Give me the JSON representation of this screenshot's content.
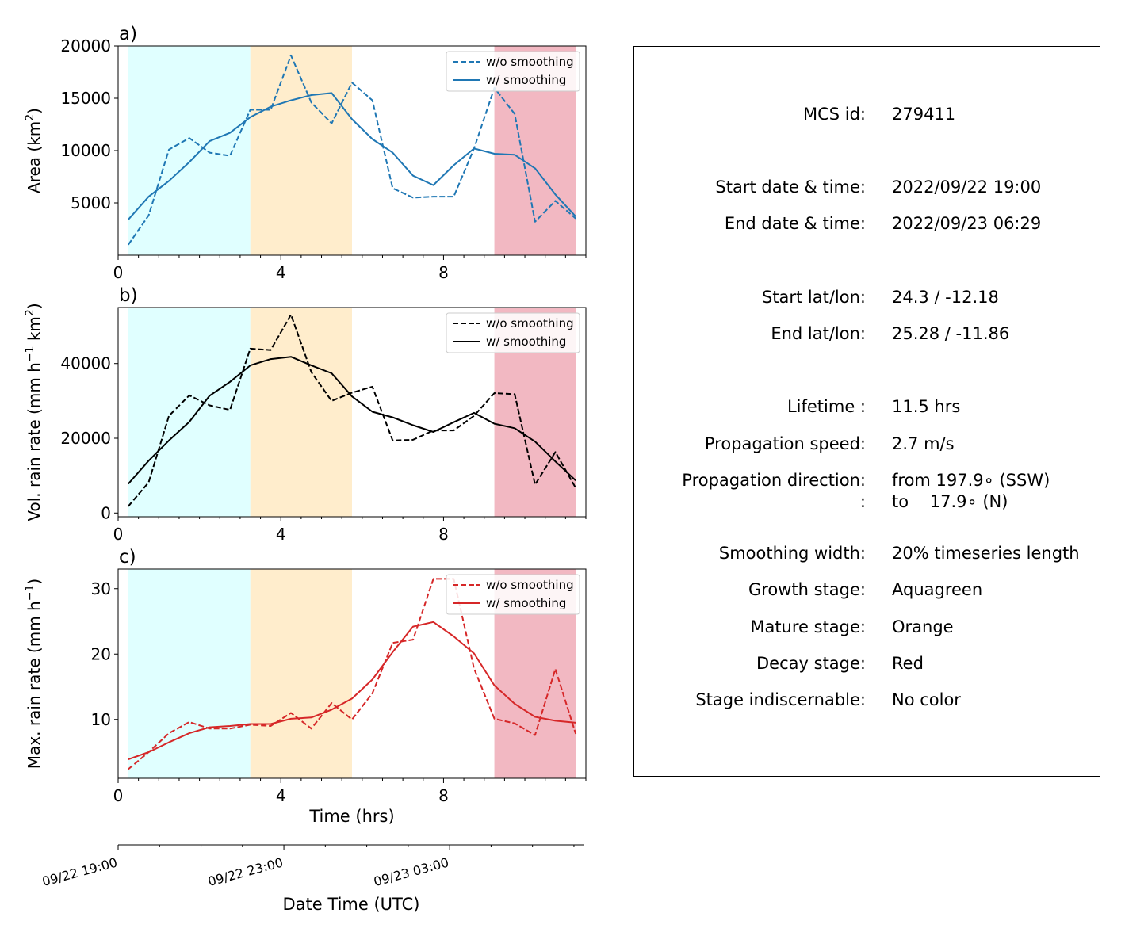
{
  "chart_data": [
    {
      "type": "line",
      "panel_label": "a)",
      "ylabel": "Area  (km",
      "ylabel_sup": "2",
      "ylabel_tail": ")",
      "ylim": [
        0,
        20000
      ],
      "yticks": [
        5000,
        10000,
        15000,
        20000
      ],
      "ytick_labels": [
        "5000",
        "10000",
        "15000",
        "20000"
      ],
      "xlim": [
        0,
        11.5
      ],
      "xticks": [
        0,
        4,
        8
      ],
      "xtick_labels": [
        "0",
        "4",
        "8"
      ],
      "series": [
        {
          "name": "w/o smoothing",
          "style": "dashed",
          "color": "#1f77b4",
          "x": [
            0.25,
            0.75,
            1.25,
            1.75,
            2.25,
            2.75,
            3.25,
            3.75,
            4.25,
            4.75,
            5.25,
            5.75,
            6.25,
            6.75,
            7.25,
            7.75,
            8.25,
            8.75,
            9.25,
            9.75,
            10.25,
            10.75,
            11.25
          ],
          "values": [
            1000,
            3800,
            10100,
            11200,
            9800,
            9500,
            13900,
            13900,
            19100,
            14600,
            12600,
            16500,
            14800,
            6400,
            5500,
            5600,
            5600,
            10200,
            16000,
            13500,
            3200,
            5200,
            3500
          ]
        },
        {
          "name": "w/ smoothing",
          "style": "solid",
          "color": "#1f77b4",
          "x": [
            0.25,
            0.75,
            1.25,
            1.75,
            2.25,
            2.75,
            3.25,
            3.75,
            4.25,
            4.75,
            5.25,
            5.75,
            6.25,
            6.75,
            7.25,
            7.75,
            8.25,
            8.75,
            9.25,
            9.75,
            10.25,
            10.75,
            11.25
          ],
          "values": [
            3400,
            5600,
            7100,
            8900,
            10900,
            11700,
            13200,
            14200,
            14800,
            15300,
            15500,
            13000,
            11100,
            9800,
            7600,
            6700,
            8600,
            10200,
            9700,
            9600,
            8300,
            5800,
            3700
          ]
        }
      ],
      "stages": [
        {
          "name": "growth",
          "from": 0.25,
          "to": 3.25,
          "color": "#e0ffff"
        },
        {
          "name": "mature",
          "from": 3.25,
          "to": 5.75,
          "color": "#ffedcc"
        },
        {
          "name": "decay",
          "from": 9.25,
          "to": 11.25,
          "color": "#f2b8c2"
        }
      ]
    },
    {
      "type": "line",
      "panel_label": "b)",
      "ylabel": "Vol. rain rate (mm h",
      "ylabel_sup": "−1",
      "ylabel_tail": " km",
      "ylabel_sup2": "2",
      "ylabel_tail2": ")",
      "ylim": [
        -1000,
        55000
      ],
      "yticks": [
        0,
        20000,
        40000
      ],
      "ytick_labels": [
        "0",
        "20000",
        "40000"
      ],
      "xlim": [
        0,
        11.5
      ],
      "xticks": [
        0,
        4,
        8
      ],
      "xtick_labels": [
        "0",
        "4",
        "8"
      ],
      "series": [
        {
          "name": "w/o smoothing",
          "style": "dashed",
          "color": "#000000",
          "x": [
            0.25,
            0.75,
            1.25,
            1.75,
            2.25,
            2.75,
            3.25,
            3.75,
            4.25,
            4.75,
            5.25,
            5.75,
            6.25,
            6.75,
            7.25,
            7.75,
            8.25,
            8.75,
            9.25,
            9.75,
            10.25,
            10.75,
            11.25
          ],
          "values": [
            1800,
            8200,
            26000,
            31500,
            28800,
            27600,
            44000,
            43600,
            53100,
            37700,
            30000,
            32200,
            33800,
            19400,
            19600,
            22100,
            22100,
            26000,
            32100,
            31800,
            7600,
            16300,
            6700
          ]
        },
        {
          "name": "w/ smoothing",
          "style": "solid",
          "color": "#000000",
          "x": [
            0.25,
            0.75,
            1.25,
            1.75,
            2.25,
            2.75,
            3.25,
            3.75,
            4.25,
            4.75,
            5.25,
            5.75,
            6.25,
            6.75,
            7.25,
            7.75,
            8.25,
            8.75,
            9.25,
            9.75,
            10.25,
            10.75,
            11.25
          ],
          "values": [
            7800,
            14000,
            19400,
            24400,
            31400,
            35100,
            39500,
            41200,
            41800,
            39500,
            37400,
            31200,
            27100,
            25600,
            23500,
            21700,
            24300,
            26800,
            23900,
            22700,
            19100,
            13800,
            8700
          ]
        }
      ],
      "stages": [
        {
          "name": "growth",
          "from": 0.25,
          "to": 3.25,
          "color": "#e0ffff"
        },
        {
          "name": "mature",
          "from": 3.25,
          "to": 5.75,
          "color": "#ffedcc"
        },
        {
          "name": "decay",
          "from": 9.25,
          "to": 11.25,
          "color": "#f2b8c2"
        }
      ]
    },
    {
      "type": "line",
      "panel_label": "c)",
      "ylabel": "Max. rain rate  (mm h",
      "ylabel_sup": "−1",
      "ylabel_tail": ")",
      "ylim": [
        1,
        33
      ],
      "yticks": [
        10,
        20,
        30
      ],
      "ytick_labels": [
        "10",
        "20",
        "30"
      ],
      "xlim": [
        0,
        11.5
      ],
      "xticks": [
        0,
        4,
        8
      ],
      "xtick_labels": [
        "0",
        "4",
        "8"
      ],
      "xlabel": "Time (hrs)",
      "series": [
        {
          "name": "w/o smoothing",
          "style": "dashed",
          "color": "#d62728",
          "x": [
            0.25,
            0.75,
            1.25,
            1.75,
            2.25,
            2.75,
            3.25,
            3.75,
            4.25,
            4.75,
            5.25,
            5.75,
            6.25,
            6.75,
            7.25,
            7.75,
            8.25,
            8.75,
            9.25,
            9.75,
            10.25,
            10.75,
            11.25
          ],
          "values": [
            2.4,
            5.0,
            7.9,
            9.6,
            8.6,
            8.6,
            9.2,
            9.0,
            11.0,
            8.6,
            12.5,
            10.0,
            14.0,
            21.7,
            22.2,
            31.5,
            31.5,
            17.8,
            10.1,
            9.4,
            7.6,
            17.7,
            7.8
          ]
        },
        {
          "name": "w/ smoothing",
          "style": "solid",
          "color": "#d62728",
          "x": [
            0.25,
            0.75,
            1.25,
            1.75,
            2.25,
            2.75,
            3.25,
            3.75,
            4.25,
            4.75,
            5.25,
            5.75,
            6.25,
            6.75,
            7.25,
            7.75,
            8.25,
            8.75,
            9.25,
            9.75,
            10.25,
            10.75,
            11.25
          ],
          "values": [
            3.9,
            5.0,
            6.5,
            7.9,
            8.8,
            9.0,
            9.3,
            9.3,
            10.1,
            10.3,
            11.5,
            13.2,
            16.1,
            20.3,
            24.2,
            24.9,
            22.7,
            20.1,
            15.2,
            12.4,
            10.4,
            9.8,
            9.5
          ]
        }
      ],
      "stages": [
        {
          "name": "growth",
          "from": 0.25,
          "to": 3.25,
          "color": "#e0ffff"
        },
        {
          "name": "mature",
          "from": 3.25,
          "to": 5.75,
          "color": "#ffedcc"
        },
        {
          "name": "decay",
          "from": 9.25,
          "to": 11.25,
          "color": "#f2b8c2"
        }
      ]
    }
  ],
  "datetime_axis": {
    "xlabel": "Date Time (UTC)",
    "tick_labels": [
      "09/22 19:00",
      "09/22 23:00",
      "09/23 03:00"
    ],
    "tick_hours": [
      0,
      4,
      8
    ]
  },
  "info": [
    {
      "label": "MCS id:",
      "value": "279411"
    },
    {
      "label": "Start date & time:",
      "value": "2022/09/22 19:00"
    },
    {
      "label": "End date & time:",
      "value": "2022/09/23 06:29"
    },
    {
      "label": "Start lat/lon:",
      "value": "24.3 / -12.18"
    },
    {
      "label": "End lat/lon:",
      "value": "25.28 / -11.86"
    },
    {
      "label": "Lifetime :",
      "value": "11.5 hrs"
    },
    {
      "label": "Propagation speed:",
      "value": "2.7 m/s"
    },
    {
      "label": "Propagation direction:",
      "value": "from 197.9∘ (SSW)"
    },
    {
      "label": ":",
      "value": "to    17.9∘ (N)"
    },
    {
      "label": "Smoothing width:",
      "value": "20% timeseries length"
    },
    {
      "label": "Growth stage:",
      "value": "Aquagreen"
    },
    {
      "label": "Mature stage:",
      "value": "Orange"
    },
    {
      "label": "Decay stage:",
      "value": "Red"
    },
    {
      "label": "Stage indiscernable:",
      "value": "No color"
    }
  ]
}
